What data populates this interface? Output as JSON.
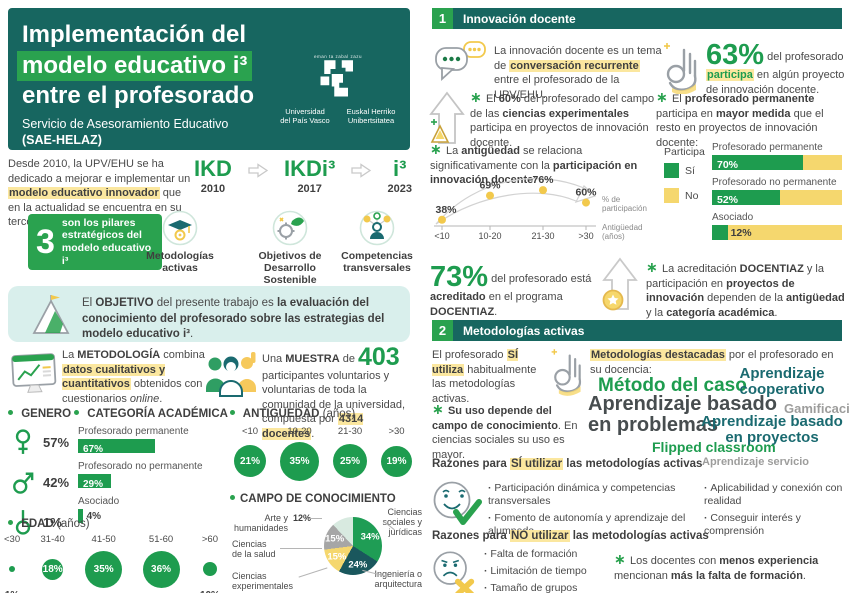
{
  "colors": {
    "teal": "#176660",
    "green": "#2AA24F",
    "green_dark": "#1E9C4F",
    "yellow": "#F5D76E",
    "yellow_highlight": "#FBE79F",
    "light_teal": "#D9EFEC",
    "teal_text": "#1A6A70",
    "gray": "#9D9D9C"
  },
  "header": {
    "title_line1": "Implementación del",
    "title_line2": "modelo educativo i³",
    "title_line3": "entre el profesorado",
    "subtitle_line1": "Servicio de Asesoramiento Educativo",
    "subtitle_line2": "(SAE-HELAZ)",
    "logo": {
      "motto": "eman ta zabal zazu",
      "name_es_1": "Universidad",
      "name_es_2": "del País Vasco",
      "name_eu_1": "Euskal Herriko",
      "name_eu_2": "Unibertsitatea"
    }
  },
  "intro": {
    "segments": [
      {
        "t": "Desde 2010, la UPV/EHU se ha dedicado a mejorar e implementar un "
      },
      {
        "t": "modelo educativo innovador",
        "c": "hl"
      },
      {
        "t": " que en la actualidad se encuentra en su tercera fase."
      }
    ]
  },
  "timeline": {
    "items": [
      {
        "name": "IKD",
        "year": "2010"
      },
      {
        "name": "IKDi³",
        "year": "2017"
      },
      {
        "name": "i³",
        "year": "2023"
      }
    ]
  },
  "pillars": {
    "badge_number": "3",
    "badge_text": "son los pilares estratégicos del modelo educativo i³",
    "items": [
      {
        "icon": "graduation-cap-gear-icon",
        "label": "Metodologías activas"
      },
      {
        "icon": "gear-leaf-icon",
        "label": "Objetivos de Desarrollo Sostenible"
      },
      {
        "icon": "people-network-icon",
        "label": "Competencias transversales"
      }
    ]
  },
  "objective": {
    "segments": [
      {
        "t": "El "
      },
      {
        "t": "OBJETIVO",
        "c": "b"
      },
      {
        "t": " del presente trabajo es "
      },
      {
        "t": "la evaluación del conocimiento del profesorado sobre las estrategias del modelo educativo i³",
        "c": "b"
      },
      {
        "t": "."
      }
    ]
  },
  "methodology": {
    "segments": [
      {
        "t": "La "
      },
      {
        "t": "METODOLOGÍA",
        "c": "b"
      },
      {
        "t": " combina "
      },
      {
        "t": "datos cualitativos y cuantitativos",
        "c": "hl"
      },
      {
        "t": " obtenidos con cuestionarios "
      },
      {
        "t": "online",
        "c": "i"
      },
      {
        "t": "."
      }
    ]
  },
  "sample": {
    "segments": [
      {
        "t": "Una "
      },
      {
        "t": "MUESTRA",
        "c": "b"
      },
      {
        "t": " de "
      },
      {
        "t": "403",
        "c": "big"
      },
      {
        "t": " participantes voluntarios y voluntarias de toda la comunidad de la universidad, compuesta por "
      },
      {
        "t": "4314 docentes",
        "c": "hl"
      },
      {
        "t": "."
      }
    ]
  },
  "demographics": {
    "gender": {
      "title": "GENERO",
      "items": [
        {
          "icon": "female-icon",
          "value": "57%"
        },
        {
          "icon": "male-icon",
          "value": "42%"
        },
        {
          "icon": "nonbinary-icon",
          "value": "1%"
        }
      ]
    }
  },
  "section1": {
    "number": "1",
    "title": "Innovación docente",
    "conversation": {
      "segments": [
        {
          "t": "La innovación docente es un tema de "
        },
        {
          "t": "conversación recurrente",
          "c": "hl"
        },
        {
          "t": " entre el profesorado de la UPV/EHU."
        }
      ]
    },
    "participation": {
      "segments": [
        {
          "t": "63%",
          "c": "huge"
        },
        {
          "t": " del profesorado "
        },
        {
          "t": "participa",
          "c": "hlg"
        },
        {
          "t": " en algún proyecto de innovación docente."
        }
      ]
    },
    "experimental": {
      "segments": [
        {
          "t": "∗ ",
          "c": "star"
        },
        {
          "t": "El "
        },
        {
          "t": "60%",
          "c": "b"
        },
        {
          "t": " del profesorado del campo de las "
        },
        {
          "t": "ciencias experimentales",
          "c": "b"
        },
        {
          "t": " participa en proyectos de innovación docente."
        }
      ]
    },
    "permanent": {
      "segments": [
        {
          "t": "∗ ",
          "c": "star"
        },
        {
          "t": "El "
        },
        {
          "t": "profesorado permanente",
          "c": "b"
        },
        {
          "t": " participa en "
        },
        {
          "t": "mayor medida",
          "c": "b"
        },
        {
          "t": " que el resto en proyectos de innovación docente:"
        }
      ]
    },
    "seniority_note": {
      "segments": [
        {
          "t": "∗ ",
          "c": "star"
        },
        {
          "t": "La "
        },
        {
          "t": "antigüedad",
          "c": "b"
        },
        {
          "t": " se relaciona significativamente con la "
        },
        {
          "t": "participación en innovación docente",
          "c": "b"
        },
        {
          "t": ":"
        }
      ]
    },
    "docentiaz": {
      "segments": [
        {
          "t": "73%",
          "c": "huge"
        },
        {
          "t": " del profesorado está "
        },
        {
          "t": "acreditado",
          "c": "b"
        },
        {
          "t": " en el programa "
        },
        {
          "t": "DOCENTIAZ",
          "c": "b"
        },
        {
          "t": "."
        }
      ]
    },
    "accreditation": {
      "segments": [
        {
          "t": "∗ ",
          "c": "star"
        },
        {
          "t": "La acreditación "
        },
        {
          "t": "DOCENTIAZ",
          "c": "b"
        },
        {
          "t": " y la participación en "
        },
        {
          "t": "proyectos de innovación",
          "c": "b"
        },
        {
          "t": " dependen de la "
        },
        {
          "t": "antigüedad",
          "c": "b"
        },
        {
          "t": " y la "
        },
        {
          "t": "categoría académica",
          "c": "b"
        },
        {
          "t": "."
        }
      ]
    }
  },
  "section2": {
    "number": "2",
    "title": "Metodologías activas",
    "uses": {
      "segments": [
        {
          "t": "El profesorado "
        },
        {
          "t": "SÍ utiliza",
          "c": "hl"
        },
        {
          "t": " habitualmente las metodologías activas."
        }
      ]
    },
    "field_note": {
      "segments": [
        {
          "t": "∗ ",
          "c": "star"
        },
        {
          "t": "Su uso depende del campo de conocimiento",
          "c": "b"
        },
        {
          "t": ". En ciencias sociales su uso es mayor."
        }
      ]
    },
    "cloud": {
      "intro_segments": [
        {
          "t": "Metodologías destacadas",
          "c": "hl"
        },
        {
          "t": " por el profesorado en su docencia:"
        }
      ],
      "words": [
        {
          "t": "Método del caso",
          "c": "green",
          "size": 19
        },
        {
          "t": "Aprendizaje cooperativo",
          "c": "teal",
          "size": 15
        },
        {
          "t": "Aprendizaje basado en problemas",
          "c": "dark",
          "size": 20
        },
        {
          "t": "Gamificación",
          "c": "gray",
          "size": 13
        },
        {
          "t": "Aprendizaje basado en proyectos",
          "c": "teal",
          "size": 15
        },
        {
          "t": "Flipped classroom",
          "c": "green",
          "size": 14
        },
        {
          "t": "Aprendizaje servicio",
          "c": "gray",
          "size": 11
        }
      ]
    },
    "reasons_yes": {
      "heading_segments": [
        {
          "t": "Razones para "
        },
        {
          "t": "SÍ utilizar",
          "c": "hl"
        },
        {
          "t": " las metodologías activas"
        }
      ],
      "bullets_col1": [
        "Participación dinámica y competencias transversales",
        "Fomento de autonomía y aprendizaje del alumnado"
      ],
      "bullets_col2": [
        "Aplicabilidad y conexión con realidad",
        "Conseguir interés y comprensión"
      ]
    },
    "reasons_no": {
      "heading_segments": [
        {
          "t": "Razones para "
        },
        {
          "t": "NO utilizar",
          "c": "hl"
        },
        {
          "t": " las metodologías activas"
        }
      ],
      "bullets": [
        "Falta de formación",
        "Limitación de tiempo",
        "Tamaño de grupos"
      ],
      "note_segments": [
        {
          "t": "∗ ",
          "c": "star"
        },
        {
          "t": "Los docentes con "
        },
        {
          "t": "menos experiencia",
          "c": "b"
        },
        {
          "t": " mencionan "
        },
        {
          "t": "más la falta de formación",
          "c": "b"
        },
        {
          "t": "."
        }
      ]
    }
  },
  "chart_data": [
    {
      "id": "edad",
      "type": "bubble",
      "title": "EDAD",
      "unit": "(años)",
      "categories": [
        "<30",
        "31-40",
        "41-50",
        "51-60",
        ">60"
      ],
      "values": [
        1,
        18,
        35,
        36,
        10
      ]
    },
    {
      "id": "antiguedad",
      "type": "bubble",
      "title": "ANTIGÜEDAD",
      "unit": "(años)",
      "categories": [
        "<10",
        "10-20",
        "21-30",
        ">30"
      ],
      "values": [
        21,
        35,
        25,
        19
      ]
    },
    {
      "id": "categoria",
      "type": "bar",
      "title": "CATEGORÍA ACADÉMICA",
      "categories": [
        "Profesorado permanente",
        "Profesorado no permanente",
        "Asociado"
      ],
      "values": [
        67,
        29,
        4
      ]
    },
    {
      "id": "campo",
      "type": "pie",
      "title": "CAMPO DE CONOCIMIENTO",
      "slices": [
        {
          "label": "Ciencias sociales y jurídicas",
          "value": 34,
          "color": "#1F9D55",
          "label_inside": true
        },
        {
          "label": "Ingeniería o arquitectura",
          "value": 24,
          "color": "#1A575D",
          "label_inside": true
        },
        {
          "label": "Ciencias experimentales",
          "value": 15,
          "color": "#F5D76E",
          "label_inside": true
        },
        {
          "label": "Ciencias de la salud",
          "value": 15,
          "color": "#A6A6A6",
          "label_inside": true
        },
        {
          "label": "Arte y humanidades",
          "value": 12,
          "color": "#D8EAE0",
          "label_inside": false
        }
      ]
    },
    {
      "id": "participa",
      "type": "stacked-bar",
      "legend": {
        "title": "Participa",
        "yes": "Sí",
        "no": "No"
      },
      "categories": [
        "Profesorado permanente",
        "Profesorado no permanente",
        "Asociado"
      ],
      "values": [
        70,
        52,
        12
      ]
    },
    {
      "id": "participacion-antiguedad",
      "type": "line",
      "x": [
        "<10",
        "10-20",
        "21-30",
        ">30"
      ],
      "y": [
        38,
        69,
        76,
        60
      ],
      "ylabel": "% de participación",
      "ylabel_lines": [
        "% de",
        "participación"
      ],
      "xlabel": "Antigüedad (años)",
      "xlabel_lines": [
        "Antigüedad",
        "(años)"
      ]
    }
  ]
}
